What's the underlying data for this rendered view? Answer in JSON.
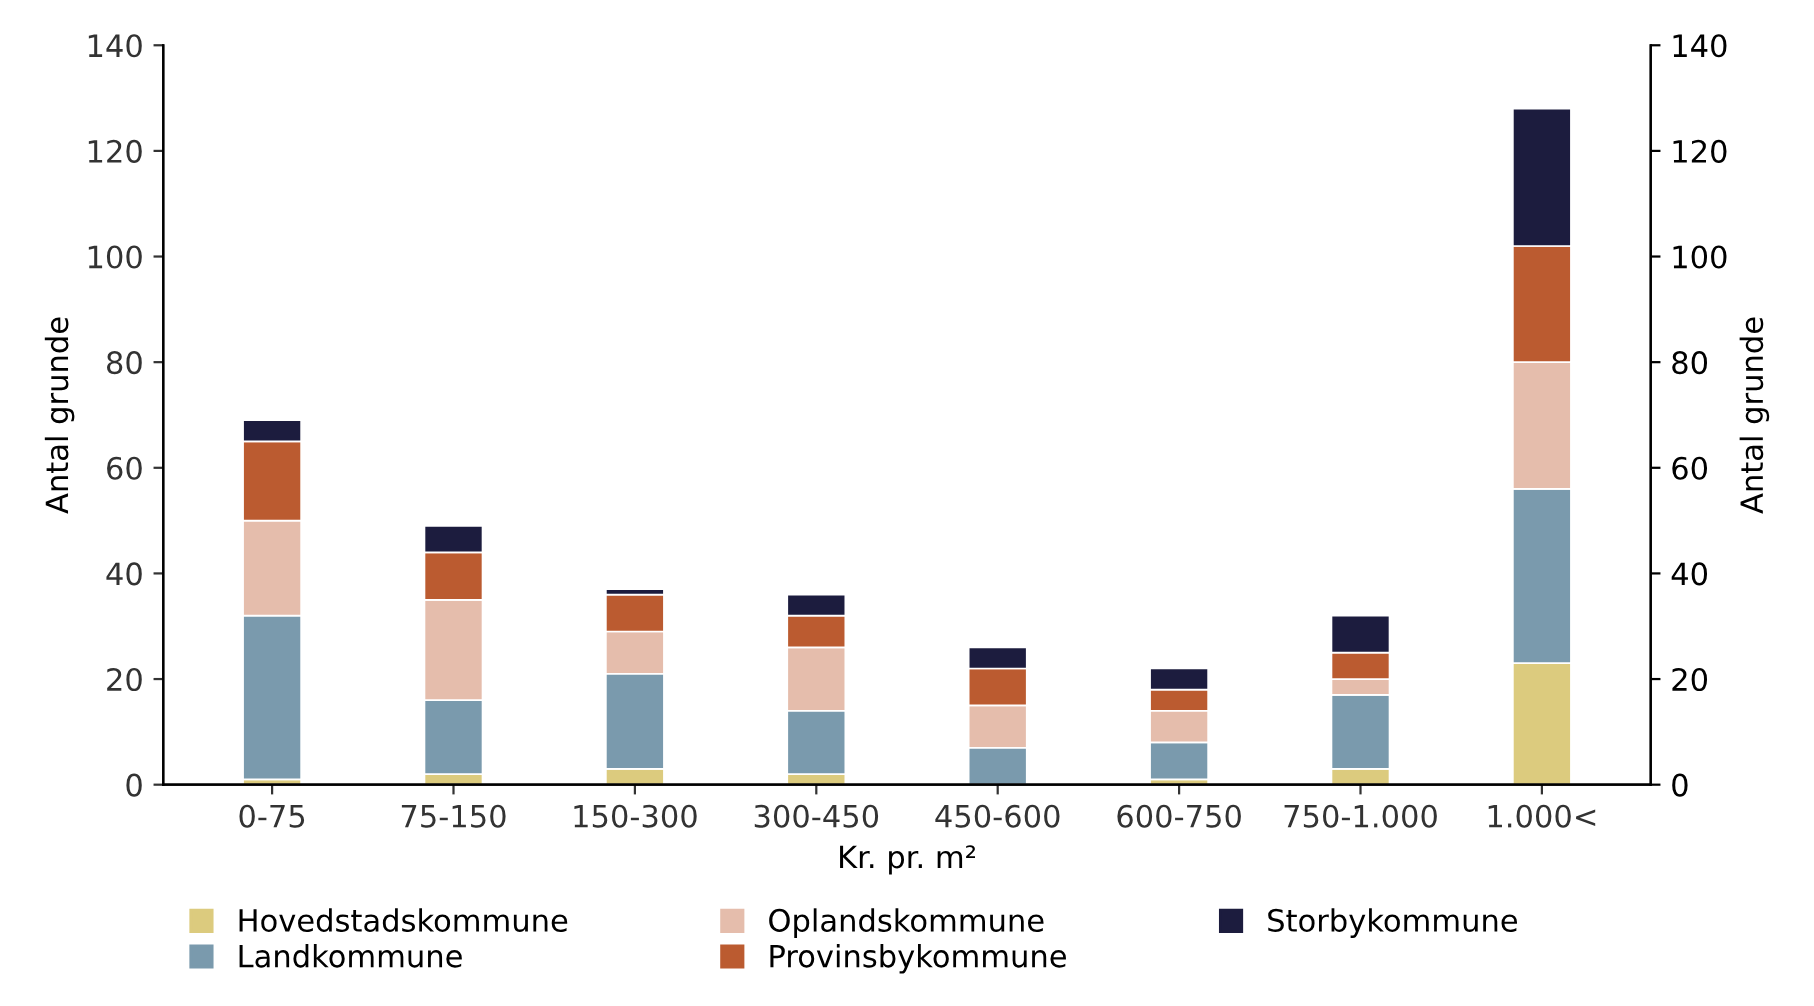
{
  "chart_data": {
    "type": "bar",
    "stacked": true,
    "xlabel": "Kr. pr. m²",
    "ylabel": "Antal grunde",
    "y2label": "Antal grunde",
    "categories": [
      "0-75",
      "75-150",
      "150-300",
      "300-450",
      "450-600",
      "600-750",
      "750-1.000",
      "1.000<"
    ],
    "series": [
      {
        "name": "Hovedstadskommune",
        "color": "#dccb7e",
        "values": [
          1,
          2,
          3,
          2,
          0,
          1,
          3,
          23
        ]
      },
      {
        "name": "Landkommune",
        "color": "#7a9aad",
        "values": [
          31,
          14,
          18,
          12,
          7,
          7,
          14,
          33
        ]
      },
      {
        "name": "Oplandskommune",
        "color": "#e5bdac",
        "values": [
          18,
          19,
          8,
          12,
          8,
          6,
          3,
          24
        ]
      },
      {
        "name": "Provinsbykommune",
        "color": "#bb5b30",
        "values": [
          15,
          9,
          7,
          6,
          7,
          4,
          5,
          22
        ]
      },
      {
        "name": "Storbykommune",
        "color": "#1c1c3e",
        "values": [
          4,
          5,
          1,
          4,
          4,
          4,
          7,
          26
        ]
      }
    ],
    "ylim": [
      0,
      140
    ],
    "yticks": [
      0,
      20,
      40,
      60,
      80,
      100,
      120,
      140
    ],
    "y2lim": [
      0,
      140
    ],
    "y2ticks": [
      0,
      20,
      40,
      60,
      80,
      100,
      120,
      140
    ],
    "grid": false,
    "legend": "bottom"
  }
}
